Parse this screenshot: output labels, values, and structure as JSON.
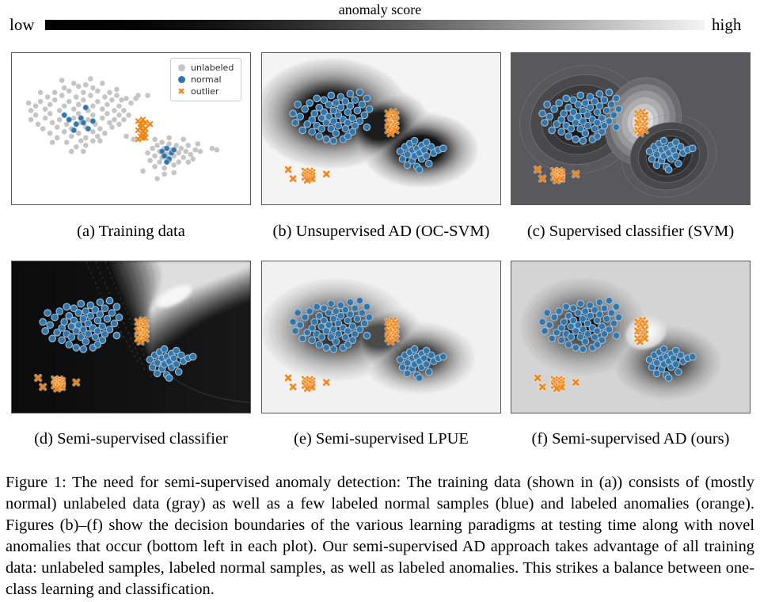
{
  "colorbar": {
    "title": "anomaly score",
    "low_label": "low",
    "high_label": "high",
    "gradient_start": "#000000",
    "gradient_end": "#f4f4f4"
  },
  "legend": {
    "items": [
      {
        "label": "unlabeled",
        "marker": "circle",
        "color": "#c5c5c5"
      },
      {
        "label": "normal",
        "marker": "circle",
        "color": "#2e74ad"
      },
      {
        "label": "outlier",
        "marker": "x",
        "color": "#ff7f0e"
      }
    ]
  },
  "panels": [
    {
      "id": "a",
      "type": "training",
      "caption": "(a) Training data"
    },
    {
      "id": "b",
      "type": "ocsvm",
      "caption": "(b) Unsupervised AD (OC-SVM)"
    },
    {
      "id": "c",
      "type": "svm",
      "caption": "(c) Supervised classifier (SVM)"
    },
    {
      "id": "d",
      "type": "semiclf",
      "caption": "(d) Semi-supervised classifier"
    },
    {
      "id": "e",
      "type": "lpue",
      "caption": "(e) Semi-supervised LPUE"
    },
    {
      "id": "f",
      "type": "ours",
      "caption": "(f) Semi-supervised AD (ours)"
    }
  ],
  "figure_caption": "Figure 1: The need for semi-supervised anomaly detection: The training data (shown in (a)) consists of (mostly normal) unlabeled data (gray) as well as a few labeled normal samples (blue) and labeled anomalies (orange). Figures (b)–(f) show the decision boundaries of the various learning paradigms at testing time along with novel anomalies that occur (bottom left in each plot). Our semi-supervised AD approach takes advantage of all training data: unlabeled samples, labeled normal samples, as well as labeled anomalies. This strikes a balance between one-class learning and classification.",
  "chart_data": {
    "type": "scatter",
    "marker_colors": {
      "unlabeled": "#c5c5c5",
      "normal": "#3277ac",
      "normal_edge": "#a6bed2",
      "outlier": "#f5830f"
    },
    "train": {
      "unlabeled": [
        [
          26,
          20
        ],
        [
          31,
          21
        ],
        [
          22,
          23
        ],
        [
          28,
          22
        ],
        [
          34,
          23
        ],
        [
          18,
          26
        ],
        [
          24,
          25
        ],
        [
          30,
          26
        ],
        [
          36,
          25
        ],
        [
          41,
          26
        ],
        [
          15,
          29
        ],
        [
          21,
          28
        ],
        [
          27,
          29
        ],
        [
          33,
          28
        ],
        [
          39,
          29
        ],
        [
          44,
          28
        ],
        [
          12,
          32
        ],
        [
          18,
          31
        ],
        [
          24,
          32
        ],
        [
          30,
          31
        ],
        [
          36,
          32
        ],
        [
          42,
          31
        ],
        [
          46,
          31
        ],
        [
          10,
          35
        ],
        [
          16,
          34
        ],
        [
          22,
          35
        ],
        [
          28,
          34
        ],
        [
          34,
          35
        ],
        [
          40,
          34
        ],
        [
          45,
          35
        ],
        [
          8,
          38
        ],
        [
          14,
          37
        ],
        [
          20,
          38
        ],
        [
          26,
          37
        ],
        [
          32,
          38
        ],
        [
          38,
          37
        ],
        [
          43,
          38
        ],
        [
          47,
          38
        ],
        [
          10,
          41
        ],
        [
          16,
          40
        ],
        [
          22,
          41
        ],
        [
          28,
          40
        ],
        [
          34,
          41
        ],
        [
          40,
          40
        ],
        [
          45,
          41
        ],
        [
          8,
          44
        ],
        [
          14,
          43
        ],
        [
          20,
          44
        ],
        [
          26,
          43
        ],
        [
          32,
          44
        ],
        [
          38,
          43
        ],
        [
          43,
          44
        ],
        [
          47,
          44
        ],
        [
          11,
          47
        ],
        [
          17,
          46
        ],
        [
          23,
          47
        ],
        [
          29,
          46
        ],
        [
          35,
          47
        ],
        [
          41,
          46
        ],
        [
          45,
          47
        ],
        [
          13,
          50
        ],
        [
          19,
          49
        ],
        [
          25,
          50
        ],
        [
          31,
          49
        ],
        [
          37,
          50
        ],
        [
          42,
          49
        ],
        [
          16,
          53
        ],
        [
          22,
          52
        ],
        [
          28,
          53
        ],
        [
          34,
          52
        ],
        [
          39,
          53
        ],
        [
          19,
          56
        ],
        [
          25,
          55
        ],
        [
          31,
          56
        ],
        [
          36,
          55
        ],
        [
          23,
          59
        ],
        [
          29,
          58
        ],
        [
          34,
          58
        ],
        [
          27,
          62
        ],
        [
          31,
          61
        ],
        [
          50,
          33
        ],
        [
          52,
          30
        ],
        [
          48,
          55
        ],
        [
          21,
          18
        ],
        [
          33,
          17
        ],
        [
          38,
          20
        ],
        [
          12,
          26
        ],
        [
          44,
          24
        ],
        [
          7,
          33
        ],
        [
          48,
          30
        ],
        [
          17,
          59
        ],
        [
          37,
          58
        ],
        [
          25,
          65
        ],
        [
          30,
          65
        ],
        [
          57,
          66
        ],
        [
          58,
          71
        ],
        [
          59,
          63
        ],
        [
          60,
          68
        ],
        [
          60,
          75
        ],
        [
          61,
          61
        ],
        [
          62,
          65
        ],
        [
          62,
          72
        ],
        [
          63,
          59
        ],
        [
          63,
          69
        ],
        [
          64,
          63
        ],
        [
          64,
          76
        ],
        [
          65,
          67
        ],
        [
          66,
          60
        ],
        [
          66,
          71
        ],
        [
          67,
          64
        ],
        [
          68,
          68
        ],
        [
          68,
          74
        ],
        [
          69,
          61
        ],
        [
          70,
          66
        ],
        [
          70,
          72
        ],
        [
          71,
          63
        ],
        [
          72,
          69
        ],
        [
          73,
          65
        ],
        [
          74,
          61
        ],
        [
          74,
          72
        ],
        [
          75,
          67
        ],
        [
          77,
          64
        ],
        [
          79,
          65
        ],
        [
          64,
          80
        ],
        [
          68,
          79
        ],
        [
          60,
          57
        ],
        [
          66,
          56
        ],
        [
          72,
          57
        ],
        [
          76,
          70
        ],
        [
          78,
          60
        ],
        [
          84,
          63
        ],
        [
          86,
          64
        ],
        [
          53,
          28
        ],
        [
          57,
          28
        ],
        [
          49,
          41
        ],
        [
          51,
          57
        ],
        [
          55,
          78
        ],
        [
          61,
          83
        ]
      ],
      "normal": [
        [
          22,
          41
        ],
        [
          24,
          44
        ],
        [
          27,
          47
        ],
        [
          29,
          43
        ],
        [
          30,
          46
        ],
        [
          26,
          51
        ],
        [
          32,
          50
        ],
        [
          34,
          45
        ],
        [
          31,
          36
        ],
        [
          63,
          65
        ],
        [
          64,
          68
        ],
        [
          65,
          63
        ],
        [
          66,
          70
        ],
        [
          67,
          66
        ],
        [
          65,
          72
        ],
        [
          68,
          64
        ]
      ],
      "outlier": [
        [
          53,
          45
        ],
        [
          54,
          47
        ],
        [
          55,
          44
        ],
        [
          56,
          46
        ],
        [
          54,
          49
        ],
        [
          55,
          48
        ],
        [
          56,
          50
        ],
        [
          53,
          51
        ],
        [
          55,
          52
        ],
        [
          56,
          53
        ],
        [
          54,
          55
        ],
        [
          55,
          56
        ],
        [
          53,
          57
        ],
        [
          56,
          56
        ],
        [
          58,
          47
        ]
      ]
    },
    "test": {
      "normal": [
        [
          16,
          42
        ],
        [
          18,
          37
        ],
        [
          19,
          47
        ],
        [
          20,
          33
        ],
        [
          21,
          44
        ],
        [
          21,
          52
        ],
        [
          22,
          40
        ],
        [
          23,
          30
        ],
        [
          23,
          48
        ],
        [
          24,
          36
        ],
        [
          24,
          55
        ],
        [
          25,
          43
        ],
        [
          25,
          50
        ],
        [
          26,
          31
        ],
        [
          26,
          39
        ],
        [
          27,
          46
        ],
        [
          27,
          57
        ],
        [
          28,
          34
        ],
        [
          28,
          42
        ],
        [
          29,
          50
        ],
        [
          29,
          28
        ],
        [
          30,
          38
        ],
        [
          30,
          45
        ],
        [
          31,
          33
        ],
        [
          31,
          53
        ],
        [
          32,
          41
        ],
        [
          32,
          48
        ],
        [
          33,
          29
        ],
        [
          33,
          36
        ],
        [
          34,
          44
        ],
        [
          34,
          57
        ],
        [
          35,
          32
        ],
        [
          35,
          50
        ],
        [
          36,
          39
        ],
        [
          36,
          46
        ],
        [
          37,
          27
        ],
        [
          37,
          35
        ],
        [
          38,
          43
        ],
        [
          38,
          52
        ],
        [
          39,
          31
        ],
        [
          39,
          48
        ],
        [
          40,
          38
        ],
        [
          41,
          26
        ],
        [
          41,
          45
        ],
        [
          42,
          34
        ],
        [
          43,
          41
        ],
        [
          44,
          30
        ],
        [
          44,
          49
        ],
        [
          45,
          37
        ],
        [
          13,
          40
        ],
        [
          14,
          46
        ],
        [
          15,
          34
        ],
        [
          17,
          51
        ],
        [
          30,
          58
        ],
        [
          36,
          55
        ],
        [
          58,
          65
        ],
        [
          59,
          70
        ],
        [
          60,
          62
        ],
        [
          61,
          67
        ],
        [
          61,
          74
        ],
        [
          62,
          60
        ],
        [
          63,
          64
        ],
        [
          63,
          71
        ],
        [
          64,
          58
        ],
        [
          64,
          68
        ],
        [
          65,
          63
        ],
        [
          65,
          75
        ],
        [
          66,
          66
        ],
        [
          67,
          61
        ],
        [
          67,
          70
        ],
        [
          68,
          64
        ],
        [
          69,
          59
        ],
        [
          69,
          68
        ],
        [
          70,
          73
        ],
        [
          71,
          62
        ],
        [
          72,
          66
        ],
        [
          74,
          64
        ],
        [
          76,
          63
        ],
        [
          66,
          77
        ]
      ],
      "outlier_known": [
        [
          53,
          40
        ],
        [
          54,
          42
        ],
        [
          55,
          39
        ],
        [
          56,
          41
        ],
        [
          54,
          44
        ],
        [
          55,
          43
        ],
        [
          56,
          45
        ],
        [
          53,
          46
        ],
        [
          55,
          47
        ],
        [
          56,
          48
        ],
        [
          54,
          49
        ],
        [
          55,
          50
        ],
        [
          53,
          51
        ],
        [
          56,
          51
        ],
        [
          54,
          53
        ]
      ],
      "outlier_novel": [
        [
          18,
          78
        ],
        [
          19,
          79
        ],
        [
          20,
          78
        ],
        [
          21,
          79
        ],
        [
          19,
          81
        ],
        [
          20,
          80
        ],
        [
          21,
          81
        ],
        [
          18,
          82
        ],
        [
          20,
          83
        ],
        [
          21,
          83
        ],
        [
          19,
          84
        ],
        [
          11,
          77
        ],
        [
          13,
          83
        ],
        [
          27,
          80
        ]
      ]
    }
  }
}
